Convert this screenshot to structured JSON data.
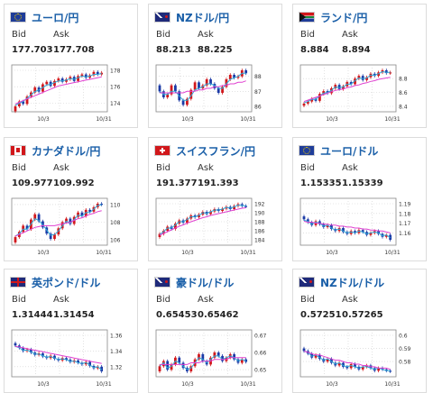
{
  "labels": {
    "bid": "Bid",
    "ask": "Ask"
  },
  "colors": {
    "up": "#d1171b",
    "down": "#1c3aa6",
    "ma": "#e040d0",
    "ma2": "#2fa8d8",
    "link": "#1a5fa8"
  },
  "cards": [
    {
      "pair": "ユーロ/円",
      "flags": [
        "eu",
        "jp"
      ],
      "bid": "177.703",
      "ask": "177.708",
      "chart_data": {
        "type": "candlestick",
        "y_ticks": [
          "178",
          "176",
          "174"
        ],
        "x_ticks": [
          "10/3",
          "10/31"
        ],
        "close": [
          173.6,
          174.2,
          173.9,
          174.8,
          175.3,
          175.9,
          175.4,
          176.3,
          176.6,
          176.1,
          176.7,
          177.0,
          176.6,
          176.9,
          177.2,
          176.7,
          177.3,
          177.5,
          177.1,
          177.4,
          177.8,
          177.5,
          177.7
        ],
        "ma": [
          173.9,
          174.1,
          174.3,
          174.5,
          174.7,
          174.9,
          175.1,
          175.3,
          175.5,
          175.7,
          175.9,
          176.1,
          176.2,
          176.3,
          176.4,
          176.5,
          176.6,
          176.7,
          176.8,
          176.9,
          177.0,
          177.1,
          177.2
        ],
        "ma2": [
          173.7,
          174.0,
          174.2,
          174.6,
          175.0,
          175.4,
          175.6,
          175.9,
          176.2,
          176.3,
          176.5,
          176.7,
          176.7,
          176.8,
          177.0,
          176.9,
          177.1,
          177.3,
          177.2,
          177.3,
          177.5,
          177.5,
          177.6
        ]
      }
    },
    {
      "pair": "NZドル/円",
      "flags": [
        "nz",
        "jp"
      ],
      "bid": "88.213",
      "ask": "88.225",
      "chart_data": {
        "type": "candlestick",
        "y_ticks": [
          "88",
          "87",
          "86"
        ],
        "x_ticks": [
          "10/3",
          "10/31"
        ],
        "close": [
          87.0,
          86.6,
          86.8,
          87.4,
          87.0,
          86.4,
          86.1,
          86.5,
          87.1,
          87.6,
          87.2,
          87.4,
          87.8,
          87.5,
          87.2,
          86.9,
          87.3,
          87.8,
          88.1,
          87.9,
          88.0,
          88.4,
          88.2
        ],
        "ma": [
          86.9,
          86.9,
          86.9,
          86.9,
          86.9,
          86.9,
          86.9,
          87.0,
          87.0,
          87.0,
          87.1,
          87.1,
          87.2,
          87.2,
          87.3,
          87.3,
          87.4,
          87.4,
          87.5,
          87.5,
          87.6,
          87.6,
          87.7
        ],
        "ma2": [
          87.0,
          86.8,
          86.8,
          87.0,
          87.0,
          86.7,
          86.4,
          86.4,
          86.7,
          87.1,
          87.2,
          87.3,
          87.5,
          87.5,
          87.4,
          87.2,
          87.2,
          87.5,
          87.8,
          87.9,
          88.0,
          88.2,
          88.2
        ]
      }
    },
    {
      "pair": "ランド/円",
      "flags": [
        "za",
        "jp"
      ],
      "bid": "8.884",
      "ask": "8.894",
      "chart_data": {
        "type": "candlestick",
        "y_ticks": [
          "8.8",
          "8.6",
          "8.4"
        ],
        "x_ticks": [
          "10/3",
          "10/31"
        ],
        "close": [
          8.44,
          8.47,
          8.51,
          8.48,
          8.58,
          8.62,
          8.59,
          8.66,
          8.71,
          8.65,
          8.69,
          8.75,
          8.72,
          8.8,
          8.84,
          8.78,
          8.82,
          8.87,
          8.84,
          8.89,
          8.92,
          8.88,
          8.89
        ],
        "ma": [
          8.47,
          8.49,
          8.51,
          8.53,
          8.55,
          8.57,
          8.59,
          8.61,
          8.63,
          8.64,
          8.65,
          8.67,
          8.68,
          8.7,
          8.71,
          8.73,
          8.74,
          8.76,
          8.77,
          8.79,
          8.8,
          8.81,
          8.82
        ],
        "ma2": [
          8.45,
          8.47,
          8.5,
          8.5,
          8.55,
          8.59,
          8.6,
          8.63,
          8.68,
          8.67,
          8.68,
          8.72,
          8.72,
          8.77,
          8.81,
          8.8,
          8.81,
          8.85,
          8.85,
          8.87,
          8.9,
          8.89,
          8.89
        ]
      }
    },
    {
      "pair": "カナダドル/円",
      "flags": [
        "ca",
        "jp"
      ],
      "bid": "109.977",
      "ask": "109.992",
      "chart_data": {
        "type": "candlestick",
        "y_ticks": [
          "110",
          "108",
          "106"
        ],
        "x_ticks": [
          "10/3",
          "10/31"
        ],
        "close": [
          106.3,
          106.9,
          107.6,
          107.2,
          108.3,
          108.9,
          108.1,
          107.4,
          106.7,
          106.1,
          106.6,
          107.3,
          108.0,
          108.4,
          107.8,
          108.6,
          109.1,
          108.7,
          109.4,
          109.2,
          109.7,
          110.1,
          110.0
        ],
        "ma": [
          106.4,
          106.6,
          106.8,
          107.0,
          107.2,
          107.4,
          107.5,
          107.6,
          107.6,
          107.6,
          107.6,
          107.7,
          107.8,
          107.9,
          108.0,
          108.2,
          108.4,
          108.5,
          108.7,
          108.9,
          109.0,
          109.2,
          109.3
        ],
        "ma2": [
          106.4,
          106.7,
          107.2,
          107.2,
          107.8,
          108.4,
          108.2,
          107.7,
          107.1,
          106.5,
          106.6,
          107.0,
          107.6,
          108.1,
          107.9,
          108.3,
          108.8,
          108.7,
          109.1,
          109.1,
          109.5,
          109.9,
          110.0
        ]
      }
    },
    {
      "pair": "スイスフラン/円",
      "flags": [
        "ch",
        "jp"
      ],
      "bid": "191.377",
      "ask": "191.393",
      "chart_data": {
        "type": "candlestick",
        "y_ticks": [
          "192",
          "190",
          "188",
          "186",
          "184"
        ],
        "x_ticks": [
          "10/3",
          "10/31"
        ],
        "close": [
          185.3,
          186.0,
          186.9,
          186.4,
          187.6,
          188.3,
          187.8,
          188.7,
          189.4,
          189.0,
          189.6,
          190.2,
          189.7,
          190.3,
          190.8,
          190.4,
          190.9,
          191.3,
          190.8,
          191.5,
          191.9,
          191.5,
          191.4
        ],
        "ma": [
          185.0,
          185.4,
          185.8,
          186.2,
          186.6,
          187.0,
          187.3,
          187.7,
          188.0,
          188.3,
          188.6,
          188.9,
          189.1,
          189.4,
          189.6,
          189.8,
          190.0,
          190.2,
          190.4,
          190.6,
          190.8,
          191.0,
          191.1
        ],
        "ma2": [
          185.2,
          185.8,
          186.6,
          186.6,
          187.3,
          188.0,
          188.0,
          188.5,
          189.1,
          189.1,
          189.4,
          190.0,
          189.9,
          190.2,
          190.6,
          190.6,
          190.8,
          191.2,
          191.0,
          191.3,
          191.7,
          191.6,
          191.5
        ]
      }
    },
    {
      "pair": "ユーロ/ドル",
      "flags": [
        "eu",
        "us"
      ],
      "bid": "1.15335",
      "ask": "1.15339",
      "chart_data": {
        "type": "candlestick",
        "y_ticks": [
          "1.19",
          "1.18",
          "1.17",
          "1.16"
        ],
        "x_ticks": [
          "10/3",
          "10/31"
        ],
        "close": [
          1.174,
          1.171,
          1.168,
          1.172,
          1.169,
          1.166,
          1.168,
          1.164,
          1.162,
          1.165,
          1.161,
          1.159,
          1.162,
          1.16,
          1.163,
          1.161,
          1.158,
          1.16,
          1.162,
          1.159,
          1.156,
          1.158,
          1.153
        ],
        "ma": [
          1.172,
          1.171,
          1.171,
          1.17,
          1.17,
          1.169,
          1.169,
          1.168,
          1.168,
          1.167,
          1.167,
          1.166,
          1.166,
          1.165,
          1.165,
          1.164,
          1.164,
          1.163,
          1.163,
          1.162,
          1.162,
          1.161,
          1.16
        ],
        "ma2": [
          1.173,
          1.172,
          1.169,
          1.171,
          1.17,
          1.167,
          1.168,
          1.165,
          1.163,
          1.164,
          1.162,
          1.16,
          1.161,
          1.16,
          1.162,
          1.161,
          1.159,
          1.16,
          1.161,
          1.16,
          1.157,
          1.158,
          1.155
        ]
      }
    },
    {
      "pair": "英ポンド/ドル",
      "flags": [
        "uk",
        "us"
      ],
      "bid": "1.31444",
      "ask": "1.31454",
      "chart_data": {
        "type": "candlestick",
        "y_ticks": [
          "1.36",
          "1.34",
          "1.32"
        ],
        "x_ticks": [
          "10/3",
          "10/31"
        ],
        "close": [
          1.347,
          1.344,
          1.34,
          1.342,
          1.338,
          1.335,
          1.337,
          1.333,
          1.331,
          1.334,
          1.33,
          1.328,
          1.331,
          1.329,
          1.326,
          1.328,
          1.325,
          1.323,
          1.326,
          1.321,
          1.318,
          1.32,
          1.314
        ],
        "ma": [
          1.346,
          1.345,
          1.344,
          1.343,
          1.342,
          1.341,
          1.34,
          1.339,
          1.338,
          1.337,
          1.336,
          1.335,
          1.334,
          1.333,
          1.332,
          1.331,
          1.33,
          1.329,
          1.328,
          1.327,
          1.326,
          1.325,
          1.324
        ],
        "ma2": [
          1.346,
          1.344,
          1.341,
          1.341,
          1.339,
          1.336,
          1.336,
          1.334,
          1.332,
          1.333,
          1.331,
          1.329,
          1.33,
          1.329,
          1.327,
          1.327,
          1.325,
          1.324,
          1.325,
          1.322,
          1.319,
          1.32,
          1.316
        ]
      }
    },
    {
      "pair": "豪ドル/ドル",
      "flags": [
        "au",
        "us"
      ],
      "bid": "0.65453",
      "ask": "0.65462",
      "chart_data": {
        "type": "candlestick",
        "y_ticks": [
          "0.67",
          "0.66",
          "0.65"
        ],
        "x_ticks": [
          "10/3",
          "10/31"
        ],
        "close": [
          0.652,
          0.655,
          0.65,
          0.653,
          0.657,
          0.654,
          0.651,
          0.649,
          0.652,
          0.656,
          0.659,
          0.655,
          0.653,
          0.657,
          0.66,
          0.658,
          0.655,
          0.657,
          0.659,
          0.656,
          0.654,
          0.656,
          0.6545
        ],
        "ma": [
          0.653,
          0.653,
          0.653,
          0.653,
          0.653,
          0.653,
          0.653,
          0.653,
          0.654,
          0.654,
          0.654,
          0.655,
          0.655,
          0.655,
          0.656,
          0.656,
          0.656,
          0.656,
          0.657,
          0.657,
          0.657,
          0.657,
          0.657
        ],
        "ma2": [
          0.652,
          0.654,
          0.651,
          0.652,
          0.655,
          0.654,
          0.652,
          0.65,
          0.651,
          0.654,
          0.657,
          0.656,
          0.654,
          0.656,
          0.658,
          0.658,
          0.656,
          0.657,
          0.658,
          0.657,
          0.655,
          0.656,
          0.655
        ]
      }
    },
    {
      "pair": "NZドル/ドル",
      "flags": [
        "nz",
        "us"
      ],
      "bid": "0.57251",
      "ask": "0.57265",
      "chart_data": {
        "type": "candlestick",
        "y_ticks": [
          "0.6",
          "0.59",
          "0.58"
        ],
        "x_ticks": [
          "10/3",
          "10/31"
        ],
        "close": [
          0.588,
          0.586,
          0.583,
          0.585,
          0.582,
          0.58,
          0.582,
          0.579,
          0.577,
          0.579,
          0.576,
          0.575,
          0.578,
          0.576,
          0.574,
          0.576,
          0.577,
          0.575,
          0.573,
          0.575,
          0.574,
          0.573,
          0.5725
        ],
        "ma": [
          0.588,
          0.587,
          0.586,
          0.585,
          0.585,
          0.584,
          0.583,
          0.582,
          0.581,
          0.581,
          0.58,
          0.579,
          0.579,
          0.578,
          0.578,
          0.577,
          0.577,
          0.576,
          0.576,
          0.575,
          0.575,
          0.575,
          0.574
        ],
        "ma2": [
          0.588,
          0.587,
          0.584,
          0.585,
          0.583,
          0.581,
          0.582,
          0.58,
          0.578,
          0.579,
          0.577,
          0.576,
          0.577,
          0.576,
          0.575,
          0.576,
          0.576,
          0.575,
          0.574,
          0.575,
          0.574,
          0.573,
          0.573
        ]
      }
    }
  ]
}
